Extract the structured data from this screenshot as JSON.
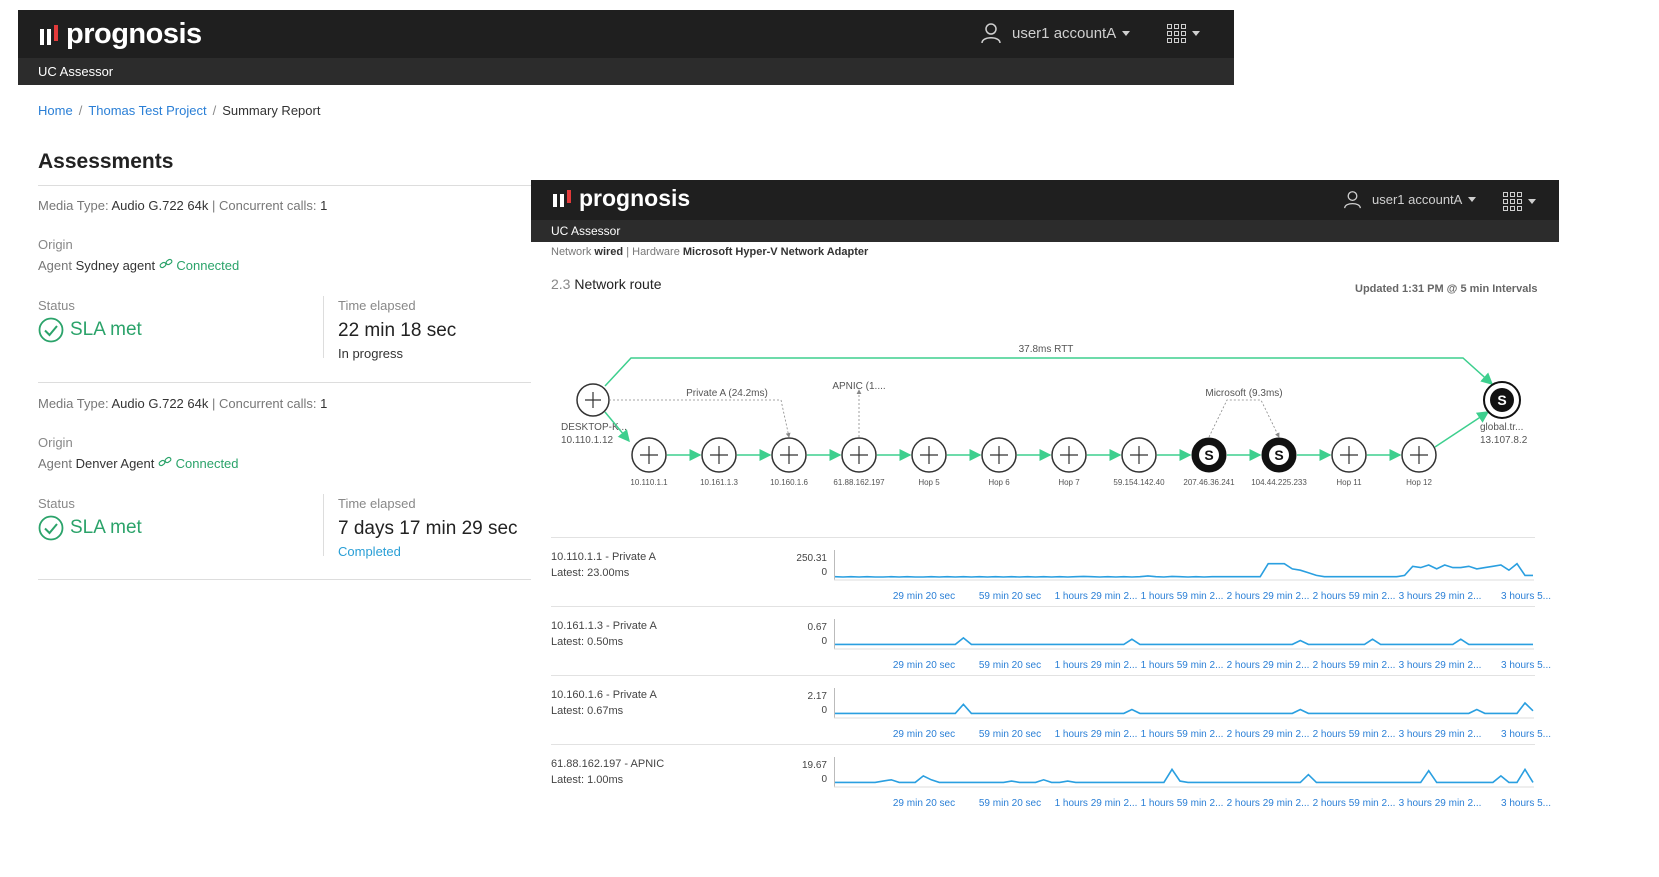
{
  "back_window": {
    "brand": "prognosis",
    "user": "user1 accountA",
    "app_title": "UC Assessor",
    "breadcrumbs": [
      "Home",
      "Thomas Test Project",
      "Summary Report"
    ],
    "heading": "Assessments",
    "assessments": [
      {
        "media_label": "Media Type:",
        "media_value": "Audio G.722 64k",
        "calls_label": "Concurrent calls:",
        "calls_value": "1",
        "origin_label": "Origin",
        "agent_label": "Agent",
        "agent_name": "Sydney agent",
        "connection": "Connected",
        "status_label": "Status",
        "status": "SLA met",
        "time_label": "Time elapsed",
        "time": "22 min 18 sec",
        "progress": "In progress",
        "progress_color": "#333333"
      },
      {
        "media_label": "Media Type:",
        "media_value": "Audio G.722 64k",
        "calls_label": "Concurrent calls:",
        "calls_value": "1",
        "origin_label": "Origin",
        "agent_label": "Agent",
        "agent_name": "Denver Agent",
        "connection": "Connected",
        "status_label": "Status",
        "status": "SLA met",
        "time_label": "Time elapsed",
        "time": "7 days 17 min 29 sec",
        "progress": "Completed",
        "progress_color": "#2a9fd6"
      }
    ]
  },
  "front_window": {
    "brand": "prognosis",
    "user": "user1 accountA",
    "app_title": "UC Assessor",
    "network_label": "Network",
    "network_value": "wired",
    "hardware_label": "Hardware",
    "hardware_value": "Microsoft Hyper-V Network Adapter",
    "section_number": "2.3",
    "section_title": "Network route",
    "updated": "Updated 1:31 PM @ 5 min Intervals",
    "route": {
      "rtt_label": "37.8ms RTT",
      "source_name": "DESKTOP-K...",
      "source_ip": "10.110.1.12",
      "dest_name": "global.tr...",
      "dest_ip": "13.107.8.2",
      "group_labels": [
        "Private A (24.2ms)",
        "APNIC (1....",
        "Microsoft (9.3ms)"
      ],
      "hops": [
        {
          "label": "10.110.1.1",
          "icon": "router"
        },
        {
          "label": "10.161.1.3",
          "icon": "router"
        },
        {
          "label": "10.160.1.6",
          "icon": "router"
        },
        {
          "label": "61.88.162.197",
          "icon": "router"
        },
        {
          "label": "Hop 5",
          "icon": "router"
        },
        {
          "label": "Hop 6",
          "icon": "router"
        },
        {
          "label": "Hop 7",
          "icon": "router"
        },
        {
          "label": "59.154.142.40",
          "icon": "router"
        },
        {
          "label": "207.46.36.241",
          "icon": "skype"
        },
        {
          "label": "104.44.225.233",
          "icon": "skype"
        },
        {
          "label": "Hop 11",
          "icon": "router"
        },
        {
          "label": "Hop 12",
          "icon": "router"
        }
      ]
    },
    "tick_labels": [
      "29 min 20 sec",
      "59 min 20 sec",
      "1 hours 29 min 2...",
      "1 hours 59 min 2...",
      "2 hours 29 min 2...",
      "2 hours 59 min 2...",
      "3 hours 29 min 2...",
      "3 hours 5..."
    ],
    "series_color": "#2a9fe0",
    "latency_rows": [
      {
        "name": "10.110.1.1 - Private A",
        "latest": "Latest: 23.00ms",
        "ymax": "250.31",
        "ymin": "0",
        "values": [
          0.05,
          0.04,
          0.05,
          0.04,
          0.05,
          0.04,
          0.04,
          0.05,
          0.04,
          0.05,
          0.04,
          0.04,
          0.05,
          0.04,
          0.05,
          0.04,
          0.05,
          0.04,
          0.05,
          0.04,
          0.05,
          0.04,
          0.05,
          0.04,
          0.05,
          0.04,
          0.05,
          0.04,
          0.05,
          0.04,
          0.05,
          0.06,
          0.05,
          0.04,
          0.05,
          0.04,
          0.05,
          0.04,
          0.05,
          0.08,
          0.05,
          0.04,
          0.06,
          0.05,
          0.04,
          0.05,
          0.04,
          0.05,
          0.05,
          0.05,
          0.05,
          0.05,
          0.05,
          0.05,
          0.55,
          0.55,
          0.55,
          0.35,
          0.3,
          0.2,
          0.1,
          0.05,
          0.05,
          0.05,
          0.05,
          0.05,
          0.05,
          0.05,
          0.05,
          0.05,
          0.05,
          0.1,
          0.45,
          0.4,
          0.5,
          0.35,
          0.5,
          0.4,
          0.4,
          0.45,
          0.35,
          0.4,
          0.45,
          0.5,
          0.3,
          0.55,
          0.1,
          0.1
        ]
      },
      {
        "name": "10.161.1.3 - Private A",
        "latest": "Latest: 0.50ms",
        "ymax": "0.67",
        "ymin": "0",
        "values": [
          0.1,
          0.1,
          0.1,
          0.1,
          0.1,
          0.1,
          0.1,
          0.1,
          0.1,
          0.1,
          0.1,
          0.1,
          0.1,
          0.1,
          0.1,
          0.1,
          0.35,
          0.1,
          0.1,
          0.1,
          0.1,
          0.1,
          0.1,
          0.1,
          0.1,
          0.1,
          0.1,
          0.1,
          0.1,
          0.1,
          0.1,
          0.1,
          0.1,
          0.1,
          0.1,
          0.1,
          0.1,
          0.3,
          0.1,
          0.1,
          0.1,
          0.1,
          0.1,
          0.1,
          0.1,
          0.1,
          0.1,
          0.1,
          0.1,
          0.1,
          0.1,
          0.1,
          0.1,
          0.1,
          0.1,
          0.1,
          0.1,
          0.1,
          0.25,
          0.1,
          0.1,
          0.1,
          0.1,
          0.1,
          0.1,
          0.1,
          0.1,
          0.3,
          0.1,
          0.1,
          0.1,
          0.1,
          0.1,
          0.1,
          0.1,
          0.1,
          0.1,
          0.1,
          0.3,
          0.1,
          0.1,
          0.1,
          0.1,
          0.1,
          0.1,
          0.1,
          0.1,
          0.1
        ]
      },
      {
        "name": "10.160.1.6 - Private A",
        "latest": "Latest: 0.67ms",
        "ymax": "2.17",
        "ymin": "0",
        "values": [
          0.1,
          0.1,
          0.1,
          0.1,
          0.1,
          0.1,
          0.1,
          0.1,
          0.1,
          0.1,
          0.1,
          0.1,
          0.1,
          0.1,
          0.1,
          0.1,
          0.45,
          0.1,
          0.1,
          0.1,
          0.1,
          0.1,
          0.1,
          0.1,
          0.1,
          0.1,
          0.1,
          0.1,
          0.1,
          0.1,
          0.1,
          0.1,
          0.1,
          0.1,
          0.1,
          0.1,
          0.1,
          0.25,
          0.1,
          0.1,
          0.1,
          0.1,
          0.1,
          0.1,
          0.1,
          0.1,
          0.1,
          0.1,
          0.1,
          0.1,
          0.1,
          0.1,
          0.1,
          0.1,
          0.1,
          0.1,
          0.1,
          0.1,
          0.25,
          0.1,
          0.1,
          0.1,
          0.1,
          0.1,
          0.1,
          0.1,
          0.1,
          0.1,
          0.1,
          0.1,
          0.1,
          0.1,
          0.1,
          0.1,
          0.1,
          0.1,
          0.1,
          0.1,
          0.1,
          0.1,
          0.25,
          0.1,
          0.1,
          0.1,
          0.1,
          0.1,
          0.5,
          0.2
        ]
      },
      {
        "name": "61.88.162.197 - APNIC",
        "latest": "Latest: 1.00ms",
        "ymax": "19.67",
        "ymin": "0",
        "values": [
          0.1,
          0.1,
          0.1,
          0.1,
          0.1,
          0.1,
          0.15,
          0.2,
          0.1,
          0.1,
          0.1,
          0.35,
          0.2,
          0.1,
          0.1,
          0.1,
          0.1,
          0.1,
          0.1,
          0.1,
          0.1,
          0.1,
          0.15,
          0.1,
          0.1,
          0.1,
          0.2,
          0.1,
          0.1,
          0.15,
          0.1,
          0.1,
          0.1,
          0.1,
          0.1,
          0.1,
          0.1,
          0.1,
          0.1,
          0.1,
          0.1,
          0.1,
          0.6,
          0.15,
          0.1,
          0.1,
          0.1,
          0.1,
          0.1,
          0.1,
          0.1,
          0.1,
          0.1,
          0.1,
          0.1,
          0.1,
          0.1,
          0.1,
          0.1,
          0.4,
          0.1,
          0.1,
          0.1,
          0.1,
          0.1,
          0.1,
          0.1,
          0.1,
          0.1,
          0.1,
          0.1,
          0.1,
          0.1,
          0.1,
          0.55,
          0.1,
          0.1,
          0.1,
          0.1,
          0.1,
          0.1,
          0.1,
          0.1,
          0.35,
          0.1,
          0.1,
          0.6,
          0.1
        ]
      }
    ]
  }
}
